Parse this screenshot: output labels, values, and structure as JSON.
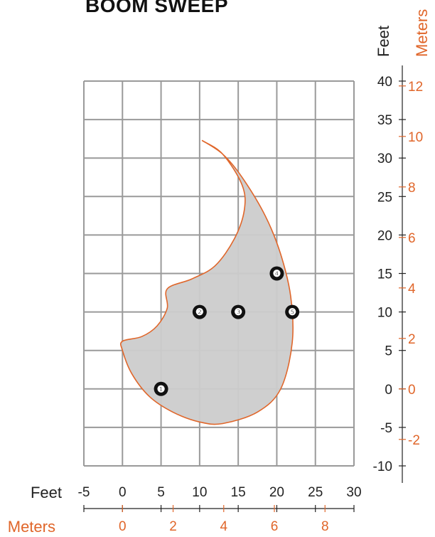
{
  "colors": {
    "accent": "#e0662a",
    "grid": "#9a9a9a",
    "fill": "#cccccc",
    "marker": "#111111"
  },
  "chart_data": {
    "type": "area",
    "title": "BOOM SWEEP",
    "x_axes": {
      "feet": {
        "label": "Feet",
        "range": [
          -5,
          30
        ],
        "ticks": [
          -5,
          0,
          5,
          10,
          15,
          20,
          25,
          30
        ]
      },
      "meters": {
        "label": "Meters",
        "ticks": [
          0,
          2,
          4,
          6,
          8
        ]
      }
    },
    "y_axes": {
      "feet": {
        "label": "Feet",
        "range": [
          -10,
          40
        ],
        "ticks": [
          -10,
          -5,
          0,
          5,
          10,
          15,
          20,
          25,
          30,
          35,
          40
        ]
      },
      "meters": {
        "label": "Meters",
        "ticks": [
          -2,
          0,
          2,
          4,
          6,
          8,
          10,
          12
        ]
      }
    },
    "grid": true,
    "sweep_outline_feet": [
      [
        10.3,
        32.3
      ],
      [
        13,
        30.5
      ],
      [
        15.5,
        27.5
      ],
      [
        18.5,
        22.5
      ],
      [
        20.5,
        17.5
      ],
      [
        21.8,
        12
      ],
      [
        22,
        6
      ],
      [
        20.5,
        0
      ],
      [
        17.5,
        -3
      ],
      [
        13,
        -4.5
      ],
      [
        10,
        -4.3
      ],
      [
        6.5,
        -3
      ],
      [
        3.5,
        -1
      ],
      [
        1.2,
        2
      ],
      [
        0,
        5
      ],
      [
        0,
        6.2
      ],
      [
        2.5,
        6.8
      ],
      [
        4.5,
        8.2
      ],
      [
        5.8,
        10.5
      ],
      [
        5.8,
        13
      ],
      [
        9,
        14.3
      ],
      [
        12,
        16
      ],
      [
        14.5,
        19.5
      ],
      [
        15.8,
        23.3
      ],
      [
        15.5,
        26.5
      ],
      [
        13,
        30.5
      ],
      [
        10.3,
        32.3
      ]
    ],
    "markers": [
      {
        "label": "❶",
        "x": 5,
        "y": 0
      },
      {
        "label": "❷",
        "x": 10,
        "y": 10
      },
      {
        "label": "❸",
        "x": 15,
        "y": 10
      },
      {
        "label": "❹",
        "x": 20,
        "y": 15
      },
      {
        "label": "❺",
        "x": 22,
        "y": 10
      }
    ]
  }
}
